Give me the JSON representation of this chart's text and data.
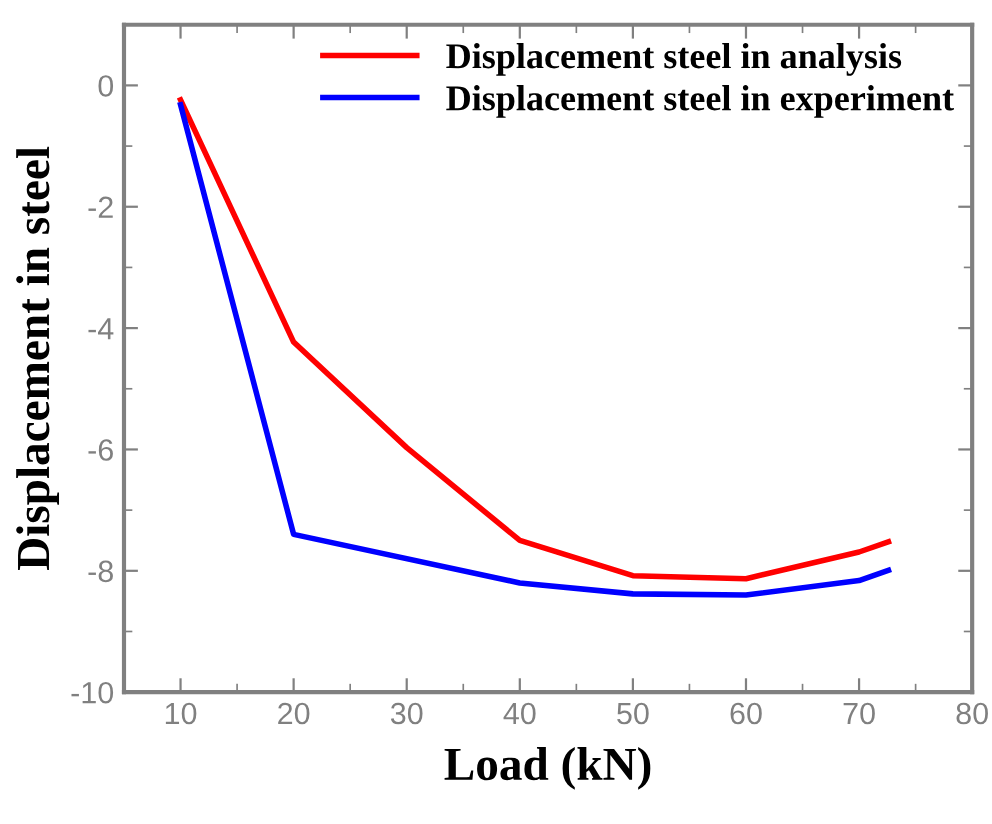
{
  "chart_data": {
    "type": "line",
    "xlabel": "Load (kN)",
    "ylabel": "Displacement in steel",
    "xlim": [
      5,
      80
    ],
    "xticks": [
      10,
      20,
      30,
      40,
      50,
      60,
      70,
      80
    ],
    "ylim": [
      -10,
      1
    ],
    "yticks": [
      -10,
      -8,
      -6,
      -4,
      -2,
      0
    ],
    "grid": false,
    "legend": "top right",
    "marker": "none",
    "line_style": "solid",
    "series": [
      {
        "name": "Displacement steel in analysis",
        "color": "#ff0000",
        "x": [
          10,
          20,
          30,
          40,
          50,
          60,
          70,
          72.6
        ],
        "values": [
          -0.24,
          -4.23,
          -5.97,
          -7.5,
          -8.08,
          -8.13,
          -7.69,
          -7.52
        ]
      },
      {
        "name": "Displacement steel in experiment",
        "color": "#0000ff",
        "x": [
          10,
          20,
          40,
          50,
          60,
          70,
          72.6
        ],
        "values": [
          -0.32,
          -7.4,
          -8.2,
          -8.38,
          -8.4,
          -8.16,
          -7.99
        ]
      }
    ]
  }
}
